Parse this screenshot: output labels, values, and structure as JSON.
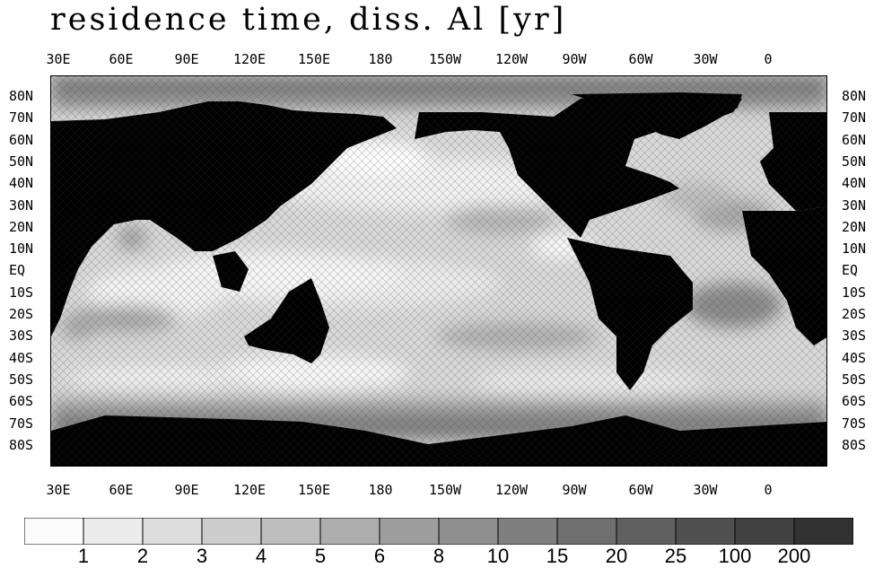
{
  "title": "residence time, diss. Al [yr]",
  "longitude_labels": [
    "30E",
    "60E",
    "90E",
    "120E",
    "150E",
    "180",
    "150W",
    "120W",
    "90W",
    "60W",
    "30W",
    "0"
  ],
  "latitude_labels": [
    "80N",
    "70N",
    "60N",
    "50N",
    "40N",
    "30N",
    "20N",
    "10N",
    "EQ",
    "10S",
    "20S",
    "30S",
    "40S",
    "50S",
    "60S",
    "70S",
    "80S"
  ],
  "colorbar": {
    "labels": [
      "1",
      "2",
      "3",
      "4",
      "5",
      "6",
      "8",
      "10",
      "15",
      "20",
      "25",
      "100",
      "200"
    ],
    "colors": [
      "#fbfbfb",
      "#ececec",
      "#dcdcdc",
      "#cdcdcd",
      "#bdbdbd",
      "#adadad",
      "#9e9e9e",
      "#8e8e8e",
      "#7f7f7f",
      "#6f6f6f",
      "#606060",
      "#505050",
      "#414141",
      "#323232"
    ]
  },
  "land_color": "#000000",
  "ocean_base_color": "#dcdcdc"
}
